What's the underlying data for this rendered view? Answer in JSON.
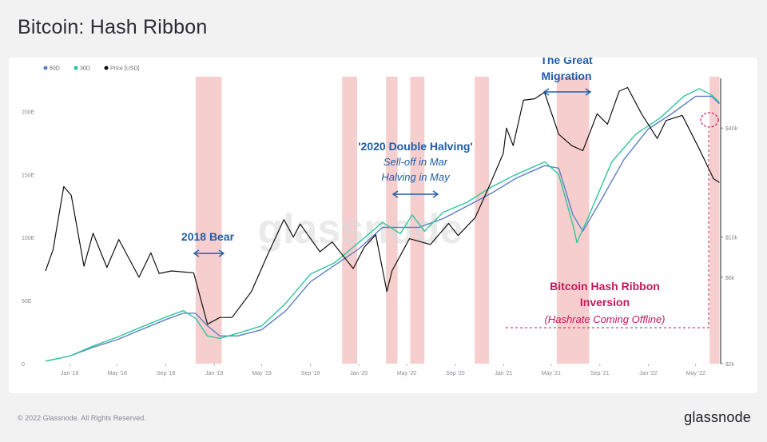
{
  "title": "Bitcoin: Hash Ribbon",
  "footer": {
    "copyright": "© 2022 Glassnode. All Rights Reserved.",
    "logo": "glassnode"
  },
  "colors": {
    "s60": "#5b7fc6",
    "s30": "#2ec79a",
    "price": "#111111",
    "band": "#f6c6c6",
    "band_dark": "#ee9a9a",
    "blue_ann": "#1f5ea8",
    "pink_ann": "#c4185a"
  },
  "chart_data": {
    "type": "line",
    "watermark": "glassnode",
    "legend": [
      "60D",
      "30D",
      "Price [USD]"
    ],
    "x_ticks": [
      "Jan '18",
      "May '18",
      "Sep '18",
      "Jan '19",
      "May '19",
      "Sep '19",
      "Jan '20",
      "May '20",
      "Sep '20",
      "Jan '21",
      "May '21",
      "Sep '21",
      "Jan '22",
      "May '22"
    ],
    "x_range": [
      "2017-11-01",
      "2022-07-01"
    ],
    "y_left": {
      "ticks": [
        "0",
        "50E",
        "100E",
        "150E",
        "200E"
      ],
      "range": [
        0,
        230
      ]
    },
    "y_right": {
      "ticks": [
        "$2k",
        "$6k",
        "$10k",
        "$40k"
      ],
      "scale": "log",
      "values": [
        2000,
        6000,
        10000,
        40000
      ],
      "range": [
        2000,
        80000
      ]
    },
    "series": [
      {
        "name": "60D",
        "axis": "left",
        "points": [
          [
            "2017-11-01",
            2
          ],
          [
            "2018-01-01",
            6
          ],
          [
            "2018-03-01",
            13
          ],
          [
            "2018-05-01",
            19
          ],
          [
            "2018-07-01",
            27
          ],
          [
            "2018-09-01",
            35
          ],
          [
            "2018-10-15",
            40
          ],
          [
            "2018-11-15",
            40
          ],
          [
            "2018-12-15",
            30
          ],
          [
            "2019-01-15",
            22
          ],
          [
            "2019-03-01",
            22
          ],
          [
            "2019-05-01",
            27
          ],
          [
            "2019-07-01",
            42
          ],
          [
            "2019-09-01",
            65
          ],
          [
            "2019-11-01",
            78
          ],
          [
            "2020-01-01",
            91
          ],
          [
            "2020-03-01",
            108
          ],
          [
            "2020-04-15",
            108
          ],
          [
            "2020-06-01",
            108
          ],
          [
            "2020-08-01",
            115
          ],
          [
            "2020-10-01",
            125
          ],
          [
            "2020-12-01",
            135
          ],
          [
            "2021-02-01",
            147
          ],
          [
            "2021-04-15",
            157
          ],
          [
            "2021-05-20",
            155
          ],
          [
            "2021-06-25",
            118
          ],
          [
            "2021-07-20",
            105
          ],
          [
            "2021-09-01",
            128
          ],
          [
            "2021-11-01",
            162
          ],
          [
            "2022-01-01",
            186
          ],
          [
            "2022-03-01",
            198
          ],
          [
            "2022-05-01",
            212
          ],
          [
            "2022-06-10",
            212
          ],
          [
            "2022-06-30",
            206
          ]
        ]
      },
      {
        "name": "30D",
        "axis": "left",
        "points": [
          [
            "2017-11-01",
            2
          ],
          [
            "2018-01-01",
            6
          ],
          [
            "2018-03-01",
            14
          ],
          [
            "2018-05-01",
            21
          ],
          [
            "2018-07-01",
            29
          ],
          [
            "2018-09-01",
            37
          ],
          [
            "2018-10-15",
            42
          ],
          [
            "2018-11-15",
            36
          ],
          [
            "2018-12-15",
            22
          ],
          [
            "2019-01-15",
            20
          ],
          [
            "2019-03-01",
            24
          ],
          [
            "2019-05-01",
            30
          ],
          [
            "2019-07-01",
            48
          ],
          [
            "2019-09-01",
            71
          ],
          [
            "2019-11-01",
            80
          ],
          [
            "2020-01-01",
            96
          ],
          [
            "2020-03-01",
            112
          ],
          [
            "2020-04-15",
            103
          ],
          [
            "2020-05-15",
            118
          ],
          [
            "2020-06-15",
            105
          ],
          [
            "2020-08-01",
            120
          ],
          [
            "2020-10-01",
            128
          ],
          [
            "2020-12-01",
            140
          ],
          [
            "2021-02-01",
            150
          ],
          [
            "2021-04-15",
            160
          ],
          [
            "2021-05-20",
            150
          ],
          [
            "2021-06-25",
            110
          ],
          [
            "2021-07-05",
            96
          ],
          [
            "2021-08-01",
            115
          ],
          [
            "2021-10-01",
            160
          ],
          [
            "2021-12-01",
            182
          ],
          [
            "2022-02-01",
            195
          ],
          [
            "2022-04-01",
            212
          ],
          [
            "2022-05-10",
            218
          ],
          [
            "2022-06-10",
            213
          ],
          [
            "2022-06-30",
            207
          ]
        ]
      },
      {
        "name": "Price [USD]",
        "axis": "right",
        "points": [
          [
            "2017-11-01",
            6500
          ],
          [
            "2017-11-20",
            8500
          ],
          [
            "2017-12-17",
            19000
          ],
          [
            "2018-01-05",
            17000
          ],
          [
            "2018-02-06",
            6900
          ],
          [
            "2018-03-01",
            10500
          ],
          [
            "2018-04-05",
            6800
          ],
          [
            "2018-05-05",
            9700
          ],
          [
            "2018-06-25",
            6000
          ],
          [
            "2018-07-25",
            8200
          ],
          [
            "2018-08-15",
            6300
          ],
          [
            "2018-09-15",
            6500
          ],
          [
            "2018-11-10",
            6350
          ],
          [
            "2018-12-15",
            3300
          ],
          [
            "2019-01-15",
            3600
          ],
          [
            "2019-02-15",
            3600
          ],
          [
            "2019-04-05",
            5000
          ],
          [
            "2019-05-15",
            7900
          ],
          [
            "2019-06-26",
            12500
          ],
          [
            "2019-07-20",
            10000
          ],
          [
            "2019-08-06",
            11800
          ],
          [
            "2019-09-25",
            8300
          ],
          [
            "2019-10-26",
            9400
          ],
          [
            "2019-12-18",
            6700
          ],
          [
            "2020-01-15",
            8800
          ],
          [
            "2020-02-13",
            10300
          ],
          [
            "2020-03-12",
            5000
          ],
          [
            "2020-03-25",
            6500
          ],
          [
            "2020-05-08",
            9800
          ],
          [
            "2020-06-30",
            9100
          ],
          [
            "2020-08-15",
            11900
          ],
          [
            "2020-09-08",
            10200
          ],
          [
            "2020-10-21",
            12800
          ],
          [
            "2020-11-25",
            19000
          ],
          [
            "2020-12-31",
            29000
          ],
          [
            "2021-01-08",
            40000
          ],
          [
            "2021-01-25",
            32000
          ],
          [
            "2021-02-20",
            57000
          ],
          [
            "2021-03-20",
            58000
          ],
          [
            "2021-04-14",
            63000
          ],
          [
            "2021-05-20",
            37000
          ],
          [
            "2021-06-22",
            32000
          ],
          [
            "2021-07-20",
            30000
          ],
          [
            "2021-08-25",
            48000
          ],
          [
            "2021-09-20",
            42000
          ],
          [
            "2021-10-20",
            64000
          ],
          [
            "2021-11-10",
            67000
          ],
          [
            "2021-12-15",
            48000
          ],
          [
            "2022-01-24",
            35000
          ],
          [
            "2022-02-15",
            44000
          ],
          [
            "2022-03-28",
            47000
          ],
          [
            "2022-05-09",
            31000
          ],
          [
            "2022-06-15",
            21000
          ],
          [
            "2022-06-30",
            20000
          ]
        ]
      }
    ],
    "shaded_periods": [
      {
        "start": "2018-11-15",
        "end": "2019-01-20"
      },
      {
        "start": "2019-11-20",
        "end": "2019-12-28"
      },
      {
        "start": "2020-03-10",
        "end": "2020-04-08"
      },
      {
        "start": "2020-05-10",
        "end": "2020-06-15"
      },
      {
        "start": "2020-10-20",
        "end": "2020-11-25"
      },
      {
        "start": "2021-05-15",
        "end": "2021-08-05"
      },
      {
        "start": "2022-06-05",
        "end": "2022-06-30"
      }
    ],
    "annotations": {
      "bear": "2018 Bear",
      "halving_title": "'2020 Double Halving'",
      "halving_line1": "Sell-off in Mar",
      "halving_line2": "Halving in May",
      "migration_line1": "The Great",
      "migration_line2": "Migration",
      "inversion_line1": "Bitcoin Hash Ribbon",
      "inversion_line2": "Inversion",
      "inversion_sub": "(Hashrate Coming Offline)"
    }
  }
}
